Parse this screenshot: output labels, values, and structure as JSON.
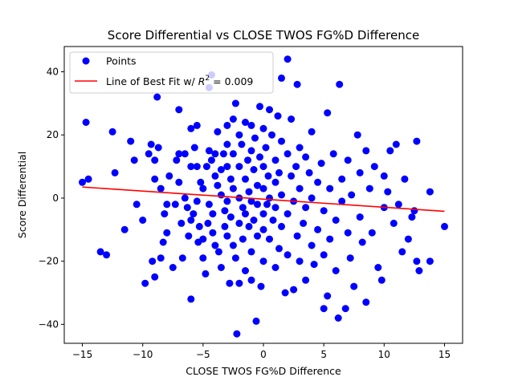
{
  "chart_data": {
    "type": "scatter",
    "title": "Score Differential vs CLOSE TWOS FG%D Difference",
    "xlabel": "CLOSE TWOS FG%D Difference",
    "ylabel": "Score Differential",
    "xlim": [
      -16.5,
      16.5
    ],
    "ylim": [
      -46,
      48
    ],
    "xticks": [
      -15,
      -10,
      -5,
      0,
      5,
      10,
      15
    ],
    "yticks": [
      -40,
      -20,
      0,
      20,
      40
    ],
    "grid": false,
    "legend": {
      "placement": "top-left",
      "points_label": "Points",
      "line_label_prefix": "Line of Best Fit w/ ",
      "line_label_r2": "R",
      "line_label_sup": "2",
      "line_label_value": " = 0.009"
    },
    "series": [
      {
        "kind": "points",
        "color": "#0000ff",
        "points": [
          [
            -15,
            5
          ],
          [
            -14.7,
            24
          ],
          [
            -14.5,
            6
          ],
          [
            -13.5,
            -17
          ],
          [
            -13,
            -18
          ],
          [
            -12.5,
            21
          ],
          [
            -12.3,
            8
          ],
          [
            -11.5,
            -10
          ],
          [
            -11,
            18
          ],
          [
            -10.7,
            12
          ],
          [
            -10.5,
            -2
          ],
          [
            -10,
            -7
          ],
          [
            -9.8,
            -27
          ],
          [
            -9.5,
            14
          ],
          [
            -9.3,
            17
          ],
          [
            -9.2,
            -20
          ],
          [
            -9,
            12
          ],
          [
            -9,
            6
          ],
          [
            -9,
            -25
          ],
          [
            -8.8,
            32
          ],
          [
            -8.7,
            16
          ],
          [
            -8.5,
            3
          ],
          [
            -8.5,
            -19
          ],
          [
            -8.3,
            -14
          ],
          [
            -8.2,
            -5
          ],
          [
            -8,
            -2
          ],
          [
            -8,
            -11
          ],
          [
            -7.8,
            7
          ],
          [
            -7.5,
            -22
          ],
          [
            -7.3,
            -2
          ],
          [
            -7.2,
            12
          ],
          [
            -7,
            28
          ],
          [
            -7,
            14
          ],
          [
            -7,
            5
          ],
          [
            -6.8,
            -8
          ],
          [
            -6.7,
            -19
          ],
          [
            -6.5,
            14
          ],
          [
            -6.5,
            0
          ],
          [
            -6.3,
            -3
          ],
          [
            -6.2,
            -12
          ],
          [
            -6,
            22
          ],
          [
            -6,
            10
          ],
          [
            -6,
            -7
          ],
          [
            -6,
            -32
          ],
          [
            -5.8,
            -5
          ],
          [
            -5.7,
            16
          ],
          [
            -5.5,
            23
          ],
          [
            -5.5,
            10
          ],
          [
            -5.5,
            -1
          ],
          [
            -5.4,
            -14
          ],
          [
            -5.3,
            -9
          ],
          [
            -5.2,
            5
          ],
          [
            -5,
            3
          ],
          [
            -5,
            -13
          ],
          [
            -5,
            -19
          ],
          [
            -4.8,
            -24
          ],
          [
            -4.7,
            10
          ],
          [
            -4.6,
            -8
          ],
          [
            -4.5,
            35
          ],
          [
            -4.5,
            15
          ],
          [
            -4.5,
            -2
          ],
          [
            -4.3,
            39
          ],
          [
            -4.3,
            12
          ],
          [
            -4.2,
            -5
          ],
          [
            -4.2,
            -11
          ],
          [
            -4,
            14
          ],
          [
            -4,
            7
          ],
          [
            -4,
            -15
          ],
          [
            -3.8,
            21
          ],
          [
            -3.8,
            4
          ],
          [
            -3.7,
            -17
          ],
          [
            -3.5,
            -22
          ],
          [
            -3.5,
            9
          ],
          [
            -3.5,
            1
          ],
          [
            -3.3,
            14
          ],
          [
            -3.2,
            -4
          ],
          [
            -3.2,
            -9
          ],
          [
            -3,
            23
          ],
          [
            -3,
            17
          ],
          [
            -3,
            10
          ],
          [
            -3,
            -1
          ],
          [
            -3,
            -12
          ],
          [
            -2.8,
            -27
          ],
          [
            -2.7,
            6
          ],
          [
            -2.7,
            -6
          ],
          [
            -2.5,
            25
          ],
          [
            -2.5,
            14
          ],
          [
            -2.5,
            3
          ],
          [
            -2.5,
            -15
          ],
          [
            -2.3,
            30
          ],
          [
            -2.3,
            -19
          ],
          [
            -2.2,
            -43
          ],
          [
            -2,
            20
          ],
          [
            -2,
            10
          ],
          [
            -2,
            0
          ],
          [
            -2,
            -8
          ],
          [
            -2,
            -27
          ],
          [
            -1.8,
            17
          ],
          [
            -1.7,
            -3
          ],
          [
            -1.7,
            -13
          ],
          [
            -1.5,
            24
          ],
          [
            -1.5,
            6
          ],
          [
            -1.5,
            -5
          ],
          [
            -1.5,
            -23
          ],
          [
            -1.3,
            12
          ],
          [
            -1.2,
            2
          ],
          [
            -1.2,
            -9
          ],
          [
            -1,
            23
          ],
          [
            -1,
            15
          ],
          [
            -1,
            -1
          ],
          [
            -1,
            -17
          ],
          [
            -1,
            -26
          ],
          [
            -0.8,
            9
          ],
          [
            -0.8,
            -7
          ],
          [
            -0.7,
            19
          ],
          [
            -0.6,
            -39
          ],
          [
            -0.5,
            -12
          ],
          [
            -0.5,
            4
          ],
          [
            -0.5,
            -2
          ],
          [
            -0.3,
            29
          ],
          [
            -0.3,
            13
          ],
          [
            -0.2,
            -28
          ],
          [
            0,
            22
          ],
          [
            0,
            10
          ],
          [
            0,
            3
          ],
          [
            0,
            -5
          ],
          [
            0,
            -10
          ],
          [
            0,
            -20
          ],
          [
            0.2,
            16
          ],
          [
            0.3,
            -2
          ],
          [
            0.4,
            7
          ],
          [
            0.5,
            28
          ],
          [
            0.5,
            -13
          ],
          [
            0.5,
            0
          ],
          [
            0.7,
            20
          ],
          [
            0.8,
            -7
          ],
          [
            1,
            12
          ],
          [
            1,
            5
          ],
          [
            1,
            -3
          ],
          [
            1,
            -22
          ],
          [
            1.2,
            26
          ],
          [
            1.3,
            8
          ],
          [
            1.3,
            -16
          ],
          [
            1.5,
            38
          ],
          [
            1.5,
            18
          ],
          [
            1.5,
            1
          ],
          [
            1.5,
            -9
          ],
          [
            1.8,
            -30
          ],
          [
            2,
            44
          ],
          [
            2,
            14
          ],
          [
            2,
            -5
          ],
          [
            2,
            -18
          ],
          [
            2.3,
            25
          ],
          [
            2.3,
            7
          ],
          [
            2.5,
            -29
          ],
          [
            2.5,
            -1
          ],
          [
            2.7,
            10
          ],
          [
            2.8,
            36
          ],
          [
            2.8,
            -12
          ],
          [
            3,
            16
          ],
          [
            3,
            3
          ],
          [
            3,
            -20
          ],
          [
            3.3,
            -8
          ],
          [
            3.5,
            13
          ],
          [
            3.5,
            -3
          ],
          [
            3.5,
            -26
          ],
          [
            3.8,
            8
          ],
          [
            4,
            21
          ],
          [
            4,
            0
          ],
          [
            4,
            -15
          ],
          [
            4.2,
            -21
          ],
          [
            4.5,
            5
          ],
          [
            4.5,
            -10
          ],
          [
            4.8,
            11
          ],
          [
            5,
            -35
          ],
          [
            5,
            -4
          ],
          [
            5,
            -18
          ],
          [
            5.3,
            27
          ],
          [
            5.3,
            -31
          ],
          [
            5.5,
            3
          ],
          [
            5.5,
            -13
          ],
          [
            5.8,
            14
          ],
          [
            6,
            -7
          ],
          [
            6,
            -23
          ],
          [
            6.2,
            -38
          ],
          [
            6.3,
            36
          ],
          [
            6.5,
            6
          ],
          [
            6.5,
            -1
          ],
          [
            6.8,
            -35
          ],
          [
            7,
            12
          ],
          [
            7,
            -11
          ],
          [
            7.2,
            -19
          ],
          [
            7.3,
            1
          ],
          [
            7.5,
            -28
          ],
          [
            7.8,
            20
          ],
          [
            8,
            8
          ],
          [
            8,
            -6
          ],
          [
            8.2,
            -14
          ],
          [
            8.5,
            15
          ],
          [
            8.5,
            -33
          ],
          [
            8.8,
            3
          ],
          [
            9,
            -11
          ],
          [
            9.2,
            10
          ],
          [
            9.5,
            -22
          ],
          [
            9.8,
            -26
          ],
          [
            10,
            -3
          ],
          [
            10,
            7
          ],
          [
            10.3,
            2
          ],
          [
            10.5,
            15
          ],
          [
            10.8,
            -8
          ],
          [
            11,
            17
          ],
          [
            11.2,
            -2
          ],
          [
            11.5,
            -17
          ],
          [
            11.7,
            6
          ],
          [
            12,
            -13
          ],
          [
            12.3,
            -6
          ],
          [
            12.5,
            -4
          ],
          [
            12.7,
            18
          ],
          [
            12.7,
            -20
          ],
          [
            12.9,
            -23
          ],
          [
            13.8,
            2
          ],
          [
            13.8,
            -20
          ],
          [
            15,
            -9
          ]
        ]
      },
      {
        "kind": "fit_line",
        "color": "#ff0000",
        "x": [
          -15,
          15
        ],
        "y": [
          3.5,
          -4.2
        ]
      }
    ]
  }
}
